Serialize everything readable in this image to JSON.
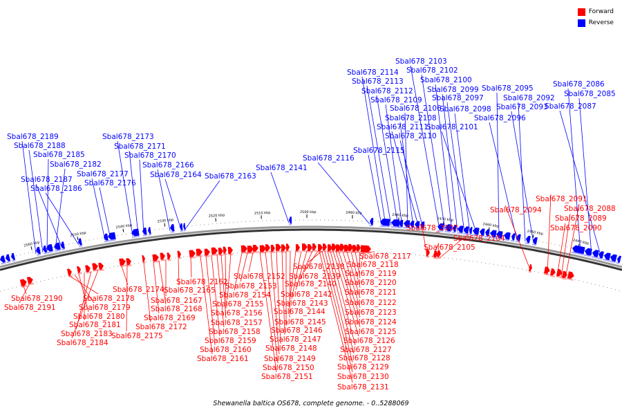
{
  "legend": {
    "forward_label": "Forward",
    "reverse_label": "Reverse",
    "forward_color": "#ff0000",
    "reverse_color": "#0000ff"
  },
  "caption": "Shewanella baltica OS678, complete genome. - 0..5288069",
  "ticks": [
    "2560 kbp",
    "2550 kbp",
    "2540 kbp",
    "2530 kbp",
    "2520 kbp",
    "2510 kbp",
    "2500 kbp",
    "2490 kbp",
    "2480 kbp",
    "2470 kbp",
    "2460 kbp",
    "2450 kbp",
    "2440 kbp"
  ],
  "forward_genes": [
    "Sbal678_2190",
    "Sbal678_2191",
    "Sbal678_2178",
    "Sbal678_2179",
    "Sbal678_2180",
    "Sbal678_2181",
    "Sbal678_2183",
    "Sbal678_2184",
    "Sbal678_2174",
    "Sbal678_2175",
    "Sbal678_2172",
    "Sbal678_2169",
    "Sbal678_2168",
    "Sbal678_2167",
    "Sbal678_2165",
    "Sbal678_2162",
    "Sbal678_2161",
    "Sbal678_2160",
    "Sbal678_2159",
    "Sbal678_2158",
    "Sbal678_2157",
    "Sbal678_2156",
    "Sbal678_2155",
    "Sbal678_2154",
    "Sbal678_2153",
    "Sbal678_2152",
    "Sbal678_2151",
    "Sbal678_2150",
    "Sbal678_2149",
    "Sbal678_2148",
    "Sbal678_2147",
    "Sbal678_2146",
    "Sbal678_2145",
    "Sbal678_2144",
    "Sbal678_2143",
    "Sbal678_2142",
    "Sbal678_2140",
    "Sbal678_2139",
    "Sbal678_2138",
    "Sbal678_2117",
    "Sbal678_2118",
    "Sbal678_2119",
    "Sbal678_2120",
    "Sbal678_2121",
    "Sbal678_2122",
    "Sbal678_2123",
    "Sbal678_2124",
    "Sbal678_2125",
    "Sbal678_2126",
    "Sbal678_2127",
    "Sbal678_2128",
    "Sbal678_2129",
    "Sbal678_2130",
    "Sbal678_2131",
    "Sbal678_2107",
    "Sbal678_2105",
    "Sbal678_2104",
    "Sbal678_2094",
    "Sbal678_2091",
    "Sbal678_2088",
    "Sbal678_2089",
    "Sbal678_2090"
  ],
  "reverse_genes": [
    "Sbal678_2189",
    "Sbal678_2188",
    "Sbal678_2185",
    "Sbal678_2182",
    "Sbal678_2187",
    "Sbal678_2186",
    "Sbal678_2177",
    "Sbal678_2176",
    "Sbal678_2173",
    "Sbal678_2171",
    "Sbal678_2170",
    "Sbal678_2166",
    "Sbal678_2164",
    "Sbal678_2163",
    "Sbal678_2141",
    "Sbal678_2116",
    "Sbal678_2115",
    "Sbal678_2114",
    "Sbal678_2113",
    "Sbal678_2112",
    "Sbal678_2109",
    "Sbal678_2106",
    "Sbal678_2108",
    "Sbal678_2111",
    "Sbal678_2110",
    "Sbal678_2103",
    "Sbal678_2102",
    "Sbal678_2100",
    "Sbal678_2099",
    "Sbal678_2097",
    "Sbal678_2098",
    "Sbal678_2101",
    "Sbal678_2095",
    "Sbal678_2092",
    "Sbal678_2093",
    "Sbal678_2096",
    "Sbal678_2086",
    "Sbal678_2085",
    "Sbal678_2087"
  ]
}
